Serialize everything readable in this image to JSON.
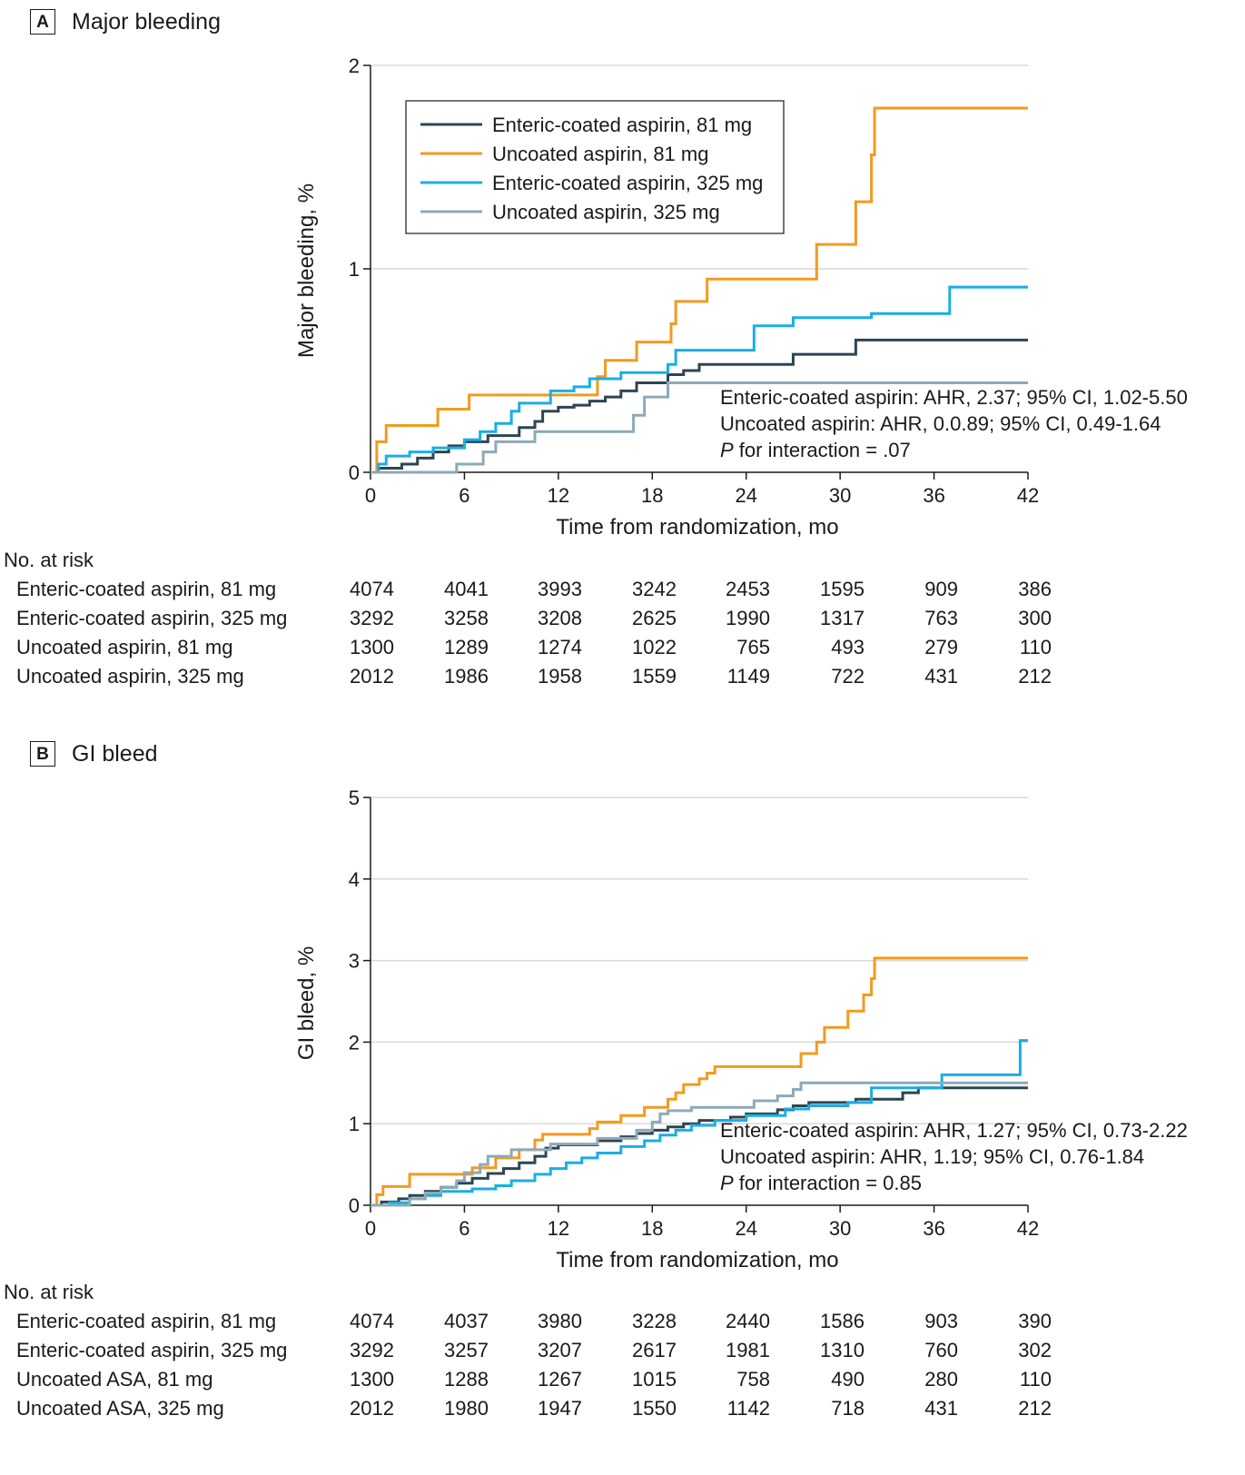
{
  "chart_data": [
    {
      "type": "line",
      "step": true,
      "panel_letter": "A",
      "title": "Major bleeding",
      "xlabel": "Time from randomization, mo",
      "ylabel": "Major bleeding, %",
      "xlim": [
        0,
        42
      ],
      "ylim": [
        0,
        2
      ],
      "xticks": [
        0,
        6,
        12,
        18,
        24,
        30,
        36,
        42
      ],
      "yticks": [
        0,
        1,
        2
      ],
      "grid": "horizontal",
      "legend": "top-center",
      "series": [
        {
          "name": "Enteric-coated aspirin, 81 mg",
          "color": "#2d4552",
          "points": [
            [
              0,
              0
            ],
            [
              0.5,
              0.02
            ],
            [
              2,
              0.04
            ],
            [
              3,
              0.07
            ],
            [
              4,
              0.1
            ],
            [
              5,
              0.13
            ],
            [
              6,
              0.15
            ],
            [
              7.5,
              0.18
            ],
            [
              9.5,
              0.22
            ],
            [
              10.5,
              0.25
            ],
            [
              11,
              0.3
            ],
            [
              12,
              0.32
            ],
            [
              13,
              0.33
            ],
            [
              14,
              0.35
            ],
            [
              15,
              0.37
            ],
            [
              16,
              0.4
            ],
            [
              17,
              0.44
            ],
            [
              19,
              0.48
            ],
            [
              20,
              0.5
            ],
            [
              21,
              0.53
            ],
            [
              27,
              0.58
            ],
            [
              31,
              0.65
            ],
            [
              42,
              0.65
            ]
          ]
        },
        {
          "name": "Uncoated aspirin, 81 mg",
          "color": "#f39a1e",
          "points": [
            [
              0,
              0
            ],
            [
              0.4,
              0.15
            ],
            [
              1,
              0.23
            ],
            [
              4.3,
              0.31
            ],
            [
              6.3,
              0.38
            ],
            [
              14.5,
              0.47
            ],
            [
              15,
              0.55
            ],
            [
              17,
              0.64
            ],
            [
              19.2,
              0.73
            ],
            [
              19.5,
              0.84
            ],
            [
              21.5,
              0.95
            ],
            [
              28.5,
              1.12
            ],
            [
              31,
              1.33
            ],
            [
              32,
              1.56
            ],
            [
              32.2,
              1.79
            ],
            [
              42,
              1.79
            ]
          ]
        },
        {
          "name": "Enteric-coated aspirin, 325 mg",
          "color": "#19aee6",
          "points": [
            [
              0,
              0
            ],
            [
              0.5,
              0.04
            ],
            [
              1,
              0.08
            ],
            [
              2.5,
              0.1
            ],
            [
              4,
              0.12
            ],
            [
              6,
              0.16
            ],
            [
              7,
              0.2
            ],
            [
              8,
              0.24
            ],
            [
              9,
              0.3
            ],
            [
              9.5,
              0.34
            ],
            [
              11.5,
              0.4
            ],
            [
              13,
              0.42
            ],
            [
              14,
              0.46
            ],
            [
              16,
              0.49
            ],
            [
              19,
              0.53
            ],
            [
              19.5,
              0.6
            ],
            [
              24.5,
              0.72
            ],
            [
              27,
              0.76
            ],
            [
              32,
              0.78
            ],
            [
              37,
              0.91
            ],
            [
              42,
              0.91
            ]
          ]
        },
        {
          "name": "Uncoated aspirin, 325 mg",
          "color": "#8ea9b8",
          "points": [
            [
              0,
              0
            ],
            [
              5.5,
              0.04
            ],
            [
              7.2,
              0.1
            ],
            [
              8,
              0.15
            ],
            [
              10.5,
              0.2
            ],
            [
              16.8,
              0.28
            ],
            [
              17.5,
              0.37
            ],
            [
              19,
              0.44
            ],
            [
              42,
              0.44
            ]
          ]
        }
      ],
      "annotations": [
        {
          "text": "Enteric-coated aspirin: AHR, 2.37; 95% CI, 1.02-5.50"
        },
        {
          "text": "Uncoated aspirin: AHR, 0.0.89; 95% CI, 0.49-1.64"
        },
        {
          "italic": "P",
          "text": " for interaction = .07"
        }
      ]
    },
    {
      "type": "line",
      "step": true,
      "panel_letter": "B",
      "title": "GI bleed",
      "xlabel": "Time from randomization, mo",
      "ylabel": "GI bleed, %",
      "xlim": [
        0,
        42
      ],
      "ylim": [
        0,
        5
      ],
      "xticks": [
        0,
        6,
        12,
        18,
        24,
        30,
        36,
        42
      ],
      "yticks": [
        0,
        1,
        2,
        3,
        4,
        5
      ],
      "grid": "horizontal",
      "legend": "none",
      "series": [
        {
          "name": "Enteric-coated aspirin, 81 mg",
          "color": "#2d4552",
          "points": [
            [
              0,
              0
            ],
            [
              0.7,
              0.04
            ],
            [
              1.8,
              0.08
            ],
            [
              2.5,
              0.12
            ],
            [
              3.5,
              0.17
            ],
            [
              4.5,
              0.22
            ],
            [
              5.5,
              0.27
            ],
            [
              6.5,
              0.33
            ],
            [
              7.5,
              0.39
            ],
            [
              8.5,
              0.45
            ],
            [
              9.5,
              0.52
            ],
            [
              10.5,
              0.6
            ],
            [
              11.2,
              0.7
            ],
            [
              12,
              0.74
            ],
            [
              14.5,
              0.79
            ],
            [
              16,
              0.84
            ],
            [
              17,
              0.88
            ],
            [
              18,
              0.92
            ],
            [
              19,
              0.96
            ],
            [
              20,
              1.0
            ],
            [
              21,
              1.04
            ],
            [
              23,
              1.08
            ],
            [
              24,
              1.12
            ],
            [
              26,
              1.17
            ],
            [
              27,
              1.22
            ],
            [
              28,
              1.26
            ],
            [
              31,
              1.3
            ],
            [
              34,
              1.38
            ],
            [
              35,
              1.44
            ],
            [
              42,
              1.44
            ]
          ]
        },
        {
          "name": "Uncoated aspirin, 81 mg",
          "color": "#f39a1e",
          "points": [
            [
              0,
              0
            ],
            [
              0.4,
              0.13
            ],
            [
              0.8,
              0.23
            ],
            [
              2.5,
              0.38
            ],
            [
              6.5,
              0.46
            ],
            [
              8,
              0.58
            ],
            [
              9.5,
              0.68
            ],
            [
              10.5,
              0.8
            ],
            [
              11,
              0.87
            ],
            [
              14,
              0.94
            ],
            [
              14.5,
              1.02
            ],
            [
              16,
              1.1
            ],
            [
              17.5,
              1.2
            ],
            [
              19,
              1.3
            ],
            [
              19.5,
              1.38
            ],
            [
              20,
              1.48
            ],
            [
              21,
              1.55
            ],
            [
              21.5,
              1.62
            ],
            [
              22,
              1.7
            ],
            [
              27.5,
              1.86
            ],
            [
              28.5,
              2.0
            ],
            [
              29,
              2.18
            ],
            [
              30.5,
              2.38
            ],
            [
              31.5,
              2.58
            ],
            [
              32,
              2.78
            ],
            [
              32.2,
              3.03
            ],
            [
              42,
              3.03
            ]
          ]
        },
        {
          "name": "Enteric-coated aspirin, 325 mg",
          "color": "#19aee6",
          "points": [
            [
              0,
              0
            ],
            [
              1.2,
              0.03
            ],
            [
              2.5,
              0.08
            ],
            [
              3.5,
              0.12
            ],
            [
              4.5,
              0.17
            ],
            [
              6.5,
              0.2
            ],
            [
              8,
              0.24
            ],
            [
              9,
              0.3
            ],
            [
              10.5,
              0.38
            ],
            [
              11.5,
              0.45
            ],
            [
              12.5,
              0.52
            ],
            [
              13.5,
              0.58
            ],
            [
              14.5,
              0.64
            ],
            [
              16,
              0.72
            ],
            [
              17.5,
              0.79
            ],
            [
              18.5,
              0.86
            ],
            [
              19.5,
              0.92
            ],
            [
              20.5,
              0.98
            ],
            [
              22,
              1.04
            ],
            [
              24,
              1.1
            ],
            [
              26.5,
              1.18
            ],
            [
              28,
              1.22
            ],
            [
              30.5,
              1.26
            ],
            [
              32,
              1.44
            ],
            [
              34,
              1.44
            ],
            [
              36.5,
              1.6
            ],
            [
              41.5,
              2.02
            ],
            [
              42,
              2.02
            ]
          ]
        },
        {
          "name": "Uncoated aspirin, 325 mg",
          "color": "#8ea9b8",
          "points": [
            [
              0,
              0
            ],
            [
              2.5,
              0.08
            ],
            [
              3.5,
              0.15
            ],
            [
              4.5,
              0.22
            ],
            [
              5.5,
              0.3
            ],
            [
              6,
              0.4
            ],
            [
              7,
              0.5
            ],
            [
              7.5,
              0.6
            ],
            [
              9,
              0.68
            ],
            [
              11.5,
              0.75
            ],
            [
              14.5,
              0.82
            ],
            [
              17,
              0.92
            ],
            [
              18,
              1.02
            ],
            [
              18.5,
              1.12
            ],
            [
              19,
              1.16
            ],
            [
              20.5,
              1.2
            ],
            [
              24.5,
              1.28
            ],
            [
              26,
              1.34
            ],
            [
              27,
              1.42
            ],
            [
              27.5,
              1.5
            ],
            [
              42,
              1.5
            ]
          ]
        }
      ],
      "annotations": [
        {
          "text": "Enteric-coated aspirin: AHR, 1.27; 95% CI, 0.73-2.22"
        },
        {
          "text": "Uncoated aspirin: AHR, 1.19; 95% CI, 0.76-1.84"
        },
        {
          "italic": "P",
          "text": " for interaction = 0.85"
        }
      ]
    }
  ],
  "risk_tables": [
    {
      "heading": "No. at risk",
      "rows": [
        {
          "label": "Enteric-coated aspirin, 81 mg",
          "values": [
            "4074",
            "4041",
            "3993",
            "3242",
            "2453",
            "1595",
            "909",
            "386"
          ]
        },
        {
          "label": "Enteric-coated aspirin, 325 mg",
          "values": [
            "3292",
            "3258",
            "3208",
            "2625",
            "1990",
            "1317",
            "763",
            "300"
          ]
        },
        {
          "label": "Uncoated aspirin, 81 mg",
          "values": [
            "1300",
            "1289",
            "1274",
            "1022",
            "765",
            "493",
            "279",
            "110"
          ]
        },
        {
          "label": "Uncoated aspirin, 325 mg",
          "values": [
            "2012",
            "1986",
            "1958",
            "1559",
            "1149",
            "722",
            "431",
            "212"
          ]
        }
      ]
    },
    {
      "heading": "No. at risk",
      "rows": [
        {
          "label": "Enteric-coated aspirin, 81 mg",
          "values": [
            "4074",
            "4037",
            "3980",
            "3228",
            "2440",
            "1586",
            "903",
            "390"
          ]
        },
        {
          "label": "Enteric-coated aspirin, 325 mg",
          "values": [
            "3292",
            "3257",
            "3207",
            "2617",
            "1981",
            "1310",
            "760",
            "302"
          ]
        },
        {
          "label": "Uncoated ASA, 81 mg",
          "values": [
            "1300",
            "1288",
            "1267",
            "1015",
            "758",
            "490",
            "280",
            "110"
          ]
        },
        {
          "label": "Uncoated ASA, 325 mg",
          "values": [
            "2012",
            "1980",
            "1947",
            "1550",
            "1142",
            "718",
            "431",
            "212"
          ]
        }
      ]
    }
  ]
}
